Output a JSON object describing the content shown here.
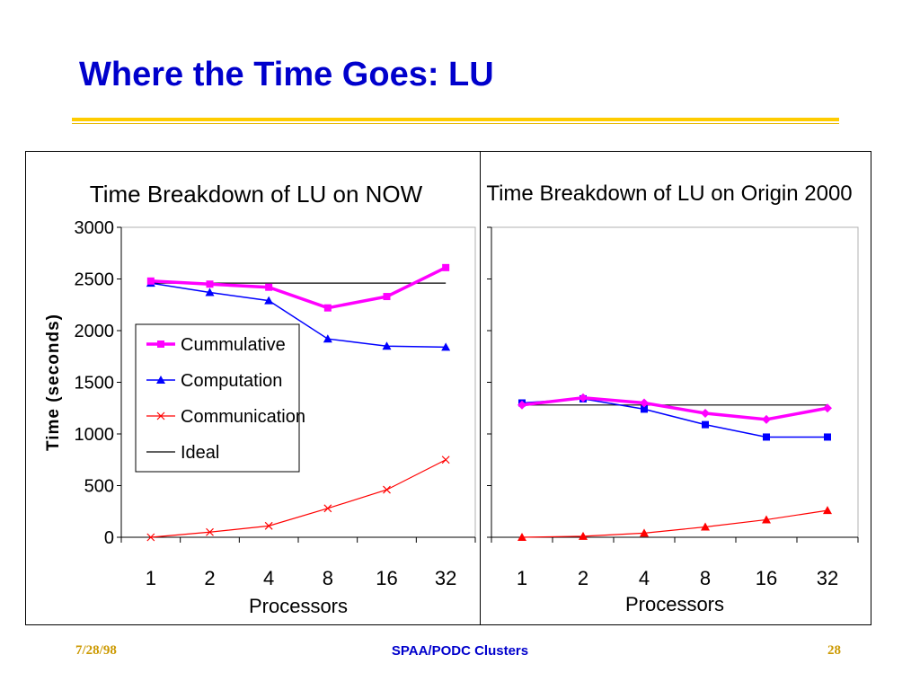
{
  "slide": {
    "title": "Where the Time Goes: LU",
    "footer_date": "7/28/98",
    "footer_center": "SPAA/PODC Clusters",
    "footer_page": "28"
  },
  "colors": {
    "title": "#0000cc",
    "rule": "#ffcc00",
    "cummulative": "#ff00ff",
    "computation": "#0000ff",
    "communication": "#ff0000",
    "ideal": "#000000"
  },
  "chart_data": [
    {
      "type": "line",
      "title": "Time Breakdown of LU on NOW",
      "xlabel": "Processors",
      "ylabel": "Time (seconds)",
      "categories": [
        "1",
        "2",
        "4",
        "8",
        "16",
        "32"
      ],
      "ylim": [
        0,
        3000
      ],
      "yticks": [
        "0",
        "500",
        "1000",
        "1500",
        "2000",
        "2500",
        "3000"
      ],
      "legend": "center-left",
      "series": [
        {
          "name": "Cummulative",
          "marker": "square",
          "values": [
            2480,
            2450,
            2420,
            2220,
            2330,
            2610
          ]
        },
        {
          "name": "Computation",
          "marker": "triangle",
          "values": [
            2460,
            2370,
            2290,
            1920,
            1850,
            1840
          ]
        },
        {
          "name": "Communication",
          "marker": "x",
          "values": [
            0,
            50,
            110,
            280,
            460,
            750
          ]
        },
        {
          "name": "Ideal",
          "marker": "none",
          "values": [
            2460,
            2460,
            2460,
            2460,
            2460,
            2460
          ]
        }
      ]
    },
    {
      "type": "line",
      "title": "Time Breakdown of LU on Origin 2000",
      "xlabel": "Processors",
      "ylabel": "",
      "categories": [
        "1",
        "2",
        "4",
        "8",
        "16",
        "32"
      ],
      "ylim": [
        0,
        3000
      ],
      "legend": "none",
      "series": [
        {
          "marker": "diamond",
          "values": [
            1280,
            1350,
            1300,
            1200,
            1140,
            1250
          ]
        },
        {
          "marker": "square",
          "values": [
            1300,
            1340,
            1240,
            1090,
            970,
            970
          ]
        },
        {
          "marker": "triangle",
          "values": [
            0,
            10,
            40,
            100,
            170,
            260
          ]
        },
        {
          "marker": "none",
          "values": [
            1280,
            1280,
            1280,
            1280,
            1280,
            1280
          ]
        }
      ]
    }
  ]
}
